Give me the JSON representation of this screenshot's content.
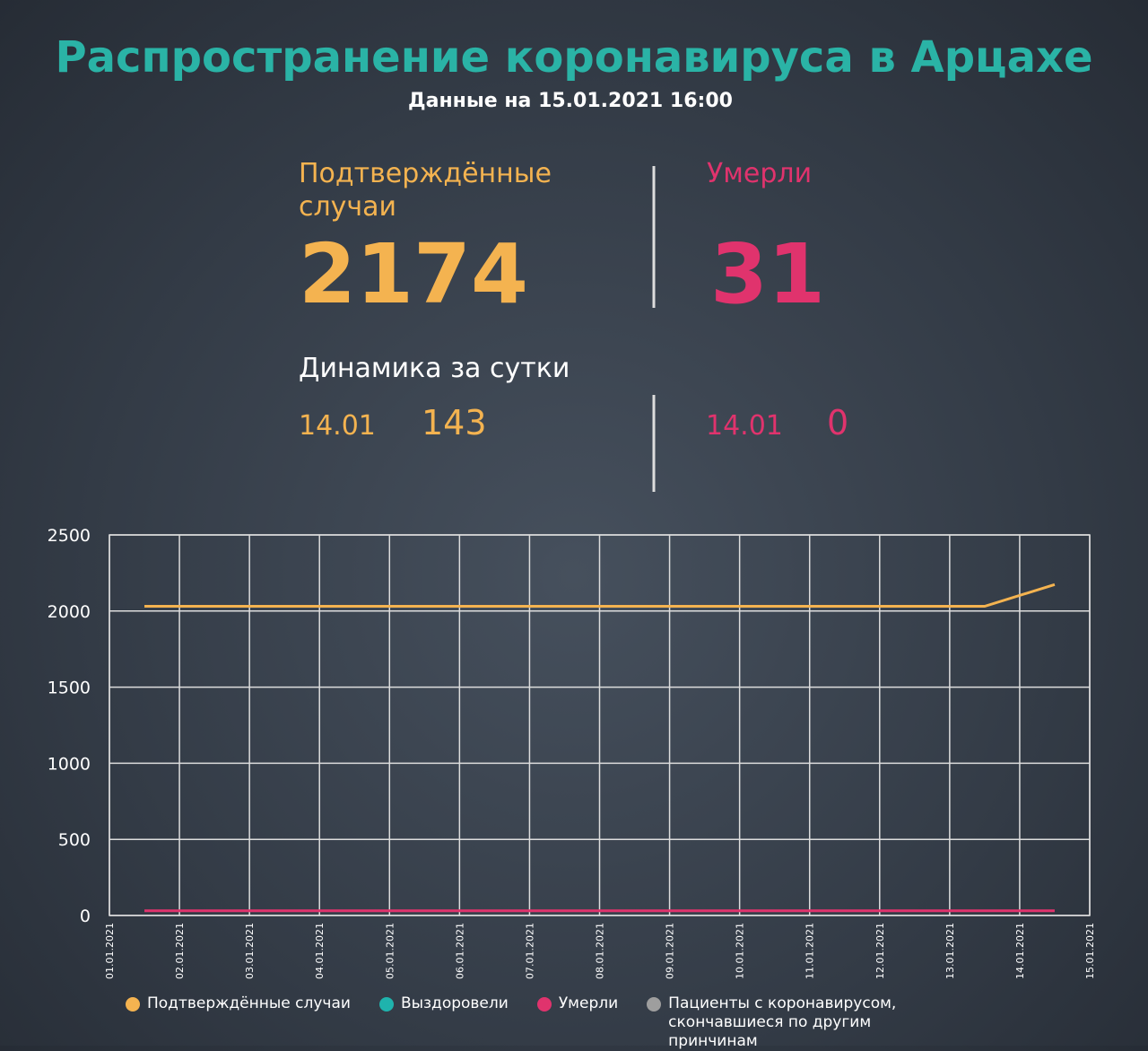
{
  "header": {
    "title": "Распространение коронавируса в Арцахе",
    "subtitle": "Данные на 15.01.2021 16:00"
  },
  "stats": {
    "confirmed": {
      "label_lines": [
        "Подтверждённые",
        "случаи"
      ],
      "value": "2174"
    },
    "deaths": {
      "label": "Умерли",
      "value": "31"
    },
    "daily": {
      "title": "Динамика за сутки",
      "confirmed": {
        "date": "14.01",
        "value": "143"
      },
      "deaths": {
        "date": "14.01",
        "value": "0"
      }
    }
  },
  "chart_data": {
    "type": "line",
    "xticks": [
      "01.01.2021",
      "02.01.2021",
      "03.01.2021",
      "04.01.2021",
      "05.01.2021",
      "06.01.2021",
      "07.01.2021",
      "08.01.2021",
      "09.01.2021",
      "10.01.2021",
      "11.01.2021",
      "12.01.2021",
      "13.01.2021",
      "14.01.2021",
      "15.01.2021"
    ],
    "ylim": [
      0,
      2500
    ],
    "yticks": [
      0,
      500,
      1000,
      1500,
      2000,
      2500
    ],
    "grid": true,
    "series": [
      {
        "name": "Подтверждённые случаи",
        "color": "#f4b350",
        "values": [
          2031,
          2031,
          2031,
          2031,
          2031,
          2031,
          2031,
          2031,
          2031,
          2031,
          2031,
          2031,
          2031,
          2174
        ]
      },
      {
        "name": "Выздоровели",
        "color": "#1fb3ad",
        "values": [
          null,
          null,
          null,
          null,
          null,
          null,
          null,
          null,
          null,
          null,
          null,
          null,
          null,
          null
        ]
      },
      {
        "name": "Умерли",
        "color": "#e0336d",
        "values": [
          31,
          31,
          31,
          31,
          31,
          31,
          31,
          31,
          31,
          31,
          31,
          31,
          31,
          31
        ]
      },
      {
        "name": "Пациенты с коронавирусом, скончавшиеся по другим принчинам",
        "color": "#9e9e9e",
        "values": [
          null,
          null,
          null,
          null,
          null,
          null,
          null,
          null,
          null,
          null,
          null,
          null,
          null,
          null
        ]
      }
    ]
  }
}
